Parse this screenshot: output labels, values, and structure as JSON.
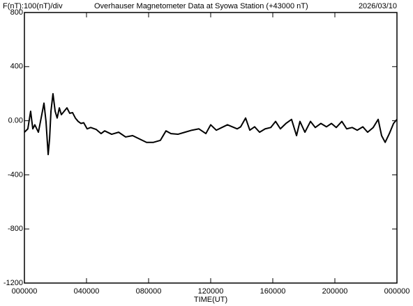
{
  "chart_data": {
    "type": "line",
    "title": "Overhauser Magnetometer Data at Syowa Station (+43000 nT)",
    "scale_label": "F(nT):100(nT)/div",
    "date": "2026/03/10",
    "x_label": "TIME(UT)",
    "color": "#000000",
    "xlim": [
      0,
      24
    ],
    "xticks": [
      {
        "value": 0,
        "label": "000000"
      },
      {
        "value": 4,
        "label": "040000"
      },
      {
        "value": 8,
        "label": "080000"
      },
      {
        "value": 12,
        "label": "120000"
      },
      {
        "value": 16,
        "label": "160000"
      },
      {
        "value": 20,
        "label": "200000"
      },
      {
        "value": 24,
        "label": "000000"
      }
    ],
    "ylim": [
      -1200,
      800
    ],
    "yticks": [
      -1200,
      -800,
      -400,
      {
        "value": 0,
        "label": "0.00"
      },
      400,
      800
    ],
    "x": [
      0,
      0.22,
      0.4,
      0.54,
      0.67,
      0.9,
      1.12,
      1.26,
      1.39,
      1.53,
      1.62,
      1.71,
      1.84,
      1.98,
      2.11,
      2.25,
      2.38,
      2.56,
      2.74,
      2.92,
      3.1,
      3.28,
      3.46,
      3.64,
      3.82,
      4.04,
      4.27,
      4.63,
      4.94,
      5.17,
      5.62,
      6.07,
      6.52,
      6.97,
      7.42,
      7.87,
      8.31,
      8.76,
      9.12,
      9.44,
      9.89,
      10.34,
      10.79,
      11.24,
      11.69,
      12.0,
      12.36,
      12.72,
      13.08,
      13.39,
      13.71,
      13.93,
      14.25,
      14.52,
      14.83,
      15.15,
      15.51,
      15.87,
      16.18,
      16.49,
      16.85,
      17.21,
      17.53,
      17.75,
      18.07,
      18.43,
      18.74,
      19.1,
      19.46,
      19.78,
      20.09,
      20.45,
      20.76,
      21.12,
      21.44,
      21.8,
      22.11,
      22.47,
      22.79,
      23.01,
      23.24,
      23.51,
      23.78,
      24
    ],
    "values": [
      -85,
      -60,
      70,
      -60,
      -30,
      -85,
      45,
      130,
      -5,
      -250,
      -135,
      70,
      200,
      70,
      20,
      95,
      45,
      70,
      95,
      55,
      60,
      20,
      -5,
      -20,
      -15,
      -60,
      -50,
      -65,
      -95,
      -75,
      -100,
      -85,
      -120,
      -110,
      -135,
      -160,
      -160,
      -145,
      -75,
      -95,
      -100,
      -85,
      -70,
      -60,
      -95,
      -30,
      -70,
      -50,
      -30,
      -45,
      -60,
      -45,
      20,
      -70,
      -45,
      -85,
      -60,
      -50,
      -5,
      -60,
      -20,
      10,
      -110,
      -5,
      -85,
      -5,
      -50,
      -20,
      -45,
      -20,
      -50,
      -5,
      -60,
      -50,
      -70,
      -45,
      -85,
      -50,
      10,
      -110,
      -160,
      -95,
      -20,
      10
    ]
  }
}
